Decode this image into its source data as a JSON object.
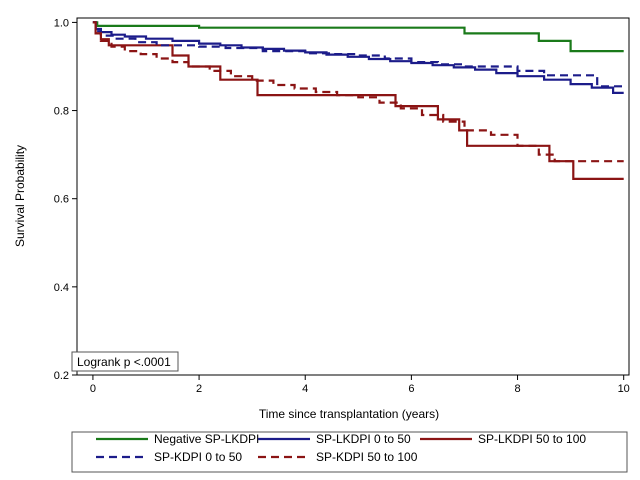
{
  "chart_data": {
    "type": "line",
    "step": true,
    "xlabel": "Time since transplantation (years)",
    "ylabel": "Survival Probability",
    "xlim": [
      -0.3,
      10.1
    ],
    "ylim": [
      0.2,
      1.01
    ],
    "xticks": [
      0,
      2,
      4,
      6,
      8,
      10
    ],
    "yticks": [
      0.2,
      0.4,
      0.6,
      0.8,
      1.0
    ],
    "xtick_labels": [
      "0",
      "2",
      "4",
      "6",
      "8",
      "10"
    ],
    "ytick_labels": [
      "0.2",
      "0.4",
      "0.6",
      "0.8",
      "1.0"
    ],
    "grid": false,
    "legend_position": "bottom",
    "annotation": "Logrank p <.0001",
    "series": [
      {
        "name": "Negative SP-LKDPI",
        "color": "#1a7a1a",
        "dash": "solid",
        "x": [
          0,
          0.08,
          2.0,
          7.0,
          8.4,
          9.0,
          10.0
        ],
        "y": [
          1.0,
          0.992,
          0.988,
          0.975,
          0.958,
          0.935,
          0.935
        ]
      },
      {
        "name": "SP-LKDPI 0 to 50",
        "color": "#1c1c8a",
        "dash": "solid",
        "x": [
          0,
          0.05,
          0.15,
          0.35,
          0.6,
          1.0,
          1.5,
          2.0,
          2.4,
          2.8,
          3.2,
          3.6,
          4.0,
          4.4,
          4.8,
          5.2,
          5.6,
          6.0,
          6.4,
          6.8,
          7.2,
          7.6,
          8.0,
          8.5,
          9.0,
          9.4,
          9.8,
          10.0
        ],
        "y": [
          1.0,
          0.985,
          0.978,
          0.972,
          0.968,
          0.963,
          0.958,
          0.952,
          0.948,
          0.943,
          0.94,
          0.936,
          0.932,
          0.927,
          0.922,
          0.917,
          0.912,
          0.908,
          0.903,
          0.898,
          0.893,
          0.885,
          0.878,
          0.87,
          0.86,
          0.852,
          0.84,
          0.84
        ]
      },
      {
        "name": "SP-LKDPI 50 to 100",
        "color": "#8b1414",
        "dash": "solid",
        "x": [
          0,
          0.05,
          0.15,
          0.3,
          1.5,
          1.8,
          2.4,
          3.1,
          5.7,
          6.5,
          6.9,
          7.05,
          8.6,
          9.05,
          10.0
        ],
        "y": [
          1.0,
          0.975,
          0.962,
          0.948,
          0.925,
          0.9,
          0.87,
          0.835,
          0.81,
          0.78,
          0.755,
          0.72,
          0.685,
          0.645,
          0.645
        ]
      },
      {
        "name": "SP-KDPI 0 to 50",
        "color": "#1c1c8a",
        "dash": "dashed",
        "x": [
          0,
          0.05,
          0.15,
          0.4,
          0.8,
          1.2,
          2.0,
          2.5,
          3.2,
          4.0,
          4.5,
          5.0,
          5.5,
          6.0,
          6.5,
          7.0,
          8.0,
          8.5,
          9.5,
          10.0
        ],
        "y": [
          1.0,
          0.98,
          0.97,
          0.963,
          0.955,
          0.948,
          0.945,
          0.942,
          0.935,
          0.93,
          0.928,
          0.925,
          0.918,
          0.91,
          0.905,
          0.9,
          0.89,
          0.88,
          0.855,
          0.855
        ]
      },
      {
        "name": "SP-KDPI 50 to 100",
        "color": "#8b1414",
        "dash": "dashed",
        "x": [
          0,
          0.05,
          0.15,
          0.35,
          0.6,
          0.9,
          1.2,
          1.5,
          1.8,
          2.2,
          2.6,
          3.0,
          3.4,
          3.8,
          4.2,
          4.6,
          5.0,
          5.4,
          5.8,
          6.2,
          6.6,
          7.0,
          7.5,
          8.0,
          8.4,
          8.7,
          9.0,
          10.0
        ],
        "y": [
          1.0,
          0.975,
          0.958,
          0.945,
          0.935,
          0.928,
          0.918,
          0.91,
          0.9,
          0.89,
          0.878,
          0.868,
          0.858,
          0.85,
          0.842,
          0.835,
          0.83,
          0.818,
          0.805,
          0.79,
          0.775,
          0.755,
          0.745,
          0.72,
          0.7,
          0.685,
          0.685,
          0.685
        ]
      }
    ]
  }
}
